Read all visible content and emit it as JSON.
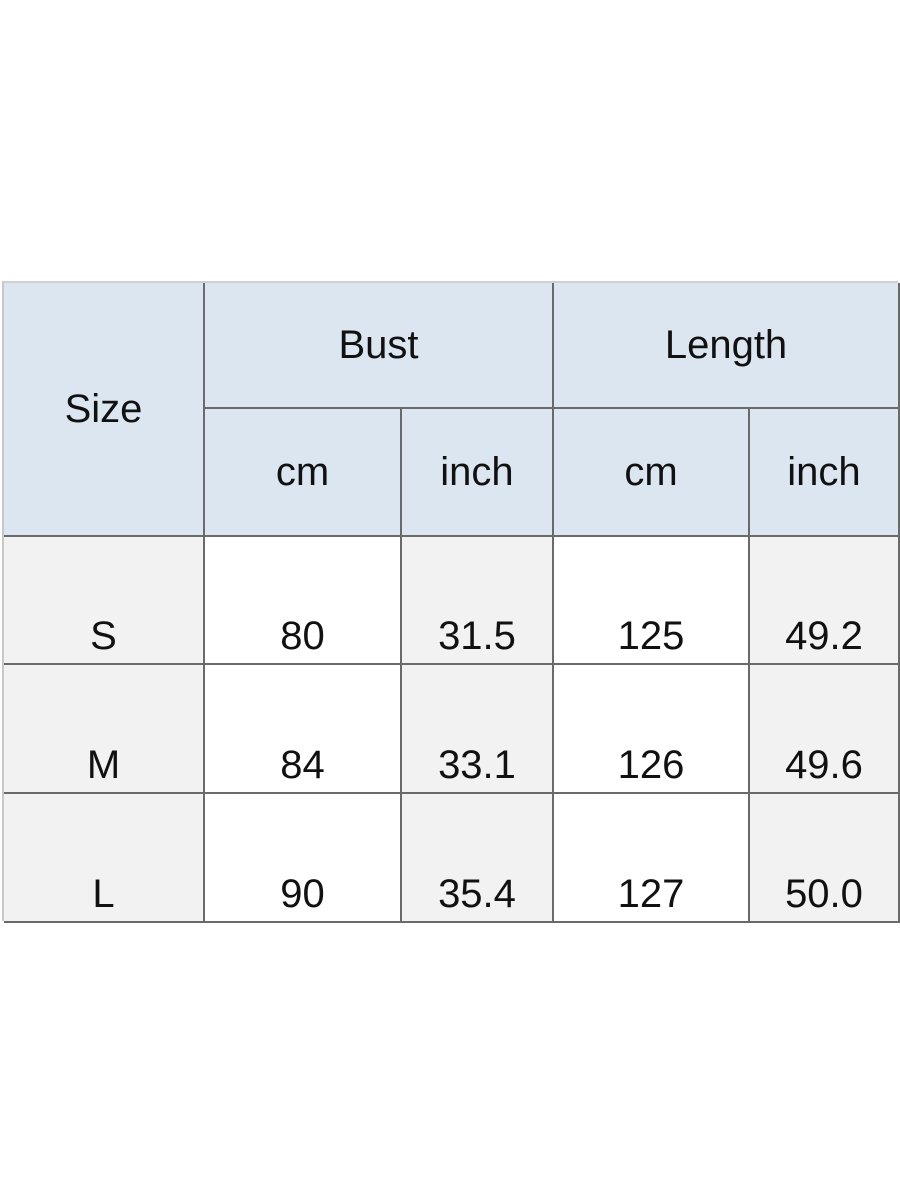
{
  "table": {
    "header": {
      "size": "Size",
      "groups": [
        "Bust",
        "Length"
      ],
      "units": [
        "cm",
        "inch",
        "cm",
        "inch"
      ]
    },
    "rows": [
      {
        "size": "S",
        "bust_cm": "80",
        "bust_inch": "31.5",
        "length_cm": "125",
        "length_inch": "49.2"
      },
      {
        "size": "M",
        "bust_cm": "84",
        "bust_inch": "33.1",
        "length_cm": "126",
        "length_inch": "49.6"
      },
      {
        "size": "L",
        "bust_cm": "90",
        "bust_inch": "35.4",
        "length_cm": "127",
        "length_inch": "50.0"
      }
    ],
    "colors": {
      "header_bg": "#dce6f1",
      "alt_bg": "#f2f2f2",
      "border": "#6a6a6a"
    }
  }
}
